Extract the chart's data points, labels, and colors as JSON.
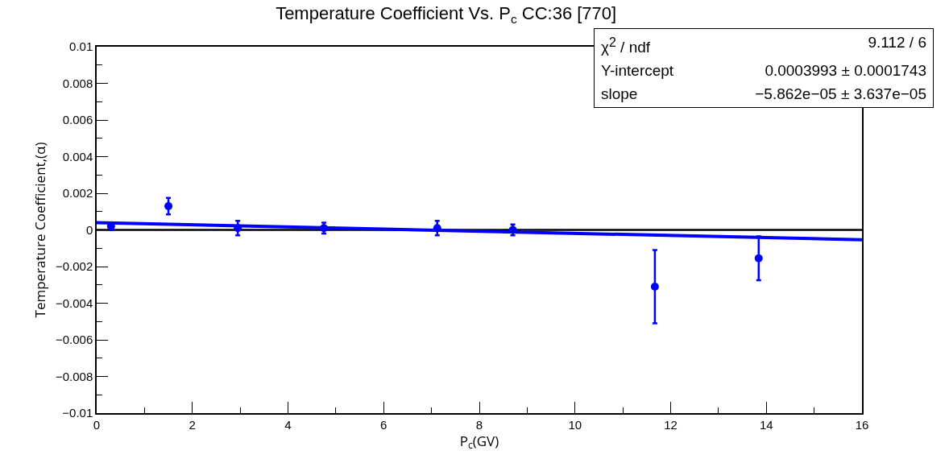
{
  "chart_data": {
    "type": "scatter",
    "title": "Temperature Coefficient Vs. P$_{c}$ CC:36 [770]",
    "xlabel": "P$_{c}$(GV)",
    "ylabel": "Temperature Coefficient,(α)",
    "xlim": [
      0,
      16
    ],
    "xticks": [
      0,
      2,
      4,
      6,
      8,
      10,
      12,
      14,
      16
    ],
    "ylim": [
      -0.01,
      0.01
    ],
    "yticks": [
      {
        "value": -0.01,
        "label": "−0.01"
      },
      {
        "value": -0.008,
        "label": "−0.008"
      },
      {
        "value": -0.006,
        "label": "−0.006"
      },
      {
        "value": -0.004,
        "label": "−0.004"
      },
      {
        "value": -0.002,
        "label": "−0.002"
      },
      0,
      0.002,
      0.004,
      0.006,
      0.008,
      0.01
    ],
    "grid": false,
    "series": [
      {
        "marker": "circle",
        "color": "#0000ff",
        "x": [
          0.3,
          1.5,
          2.95,
          4.75,
          7.12,
          8.7,
          11.67,
          13.84
        ],
        "values": [
          0.0002,
          0.0013,
          0.0001,
          0.0001,
          0.0001,
          0,
          -0.0031,
          -0.00155
        ],
        "errors": [
          0.0002,
          0.00045,
          0.0004,
          0.0003,
          0.0004,
          0.0003,
          0.002,
          0.0012
        ]
      },
      {
        "type": "line",
        "color": "#0000ff",
        "x": [
          0,
          16
        ],
        "values": [
          0.0004,
          -0.00054
        ]
      }
    ],
    "ref_lines": [
      {
        "axis": "y",
        "value": 0,
        "color": "#000000"
      }
    ],
    "annotations": [
      "χ$^{2}$ / ndf",
      "9.112 / 6",
      "Y-intercept",
      "0.0003993 ± 0.0001743",
      "slope",
      "−5.862e−05 ± 3.637e−05"
    ]
  }
}
